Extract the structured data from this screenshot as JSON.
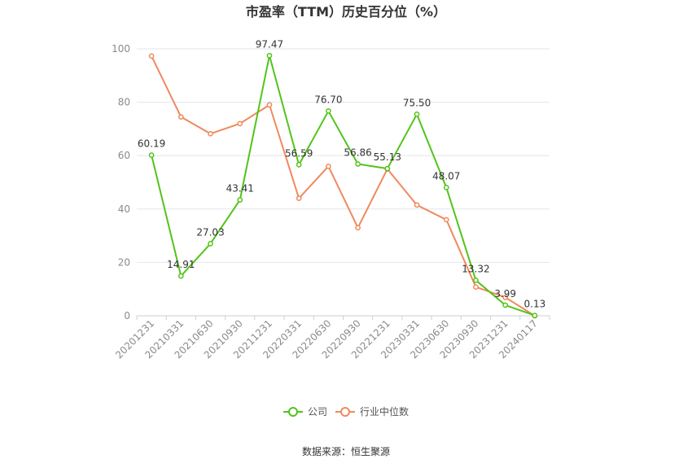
{
  "chart_data": {
    "type": "line",
    "title": "市盈率（TTM）历史百分位（%）",
    "categories": [
      "20201231",
      "20210331",
      "20210630",
      "20210930",
      "20211231",
      "20220331",
      "20220630",
      "20220930",
      "20221231",
      "20230331",
      "20230630",
      "20230930",
      "20231231",
      "20240117"
    ],
    "ylim": [
      0,
      100
    ],
    "yticks": [
      0,
      20,
      40,
      60,
      80,
      100
    ],
    "grid": true,
    "legend_position": "bottom",
    "series": [
      {
        "name": "公司",
        "color": "#52c41a",
        "values": [
          60.19,
          14.91,
          27.03,
          43.41,
          97.47,
          56.59,
          76.7,
          56.86,
          55.13,
          75.5,
          48.07,
          13.32,
          3.99,
          0.13
        ],
        "labels": [
          "60.19",
          "14.91",
          "27.03",
          "43.41",
          "97.47",
          "56.59",
          "76.70",
          "56.86",
          "55.13",
          "75.50",
          "48.07",
          "13.32",
          "3.99",
          "0.13"
        ]
      },
      {
        "name": "行业中位数",
        "color": "#f0895e",
        "values": [
          97.3,
          74.5,
          68.2,
          72.0,
          79.0,
          44.0,
          56.0,
          33.0,
          55.0,
          41.5,
          36.0,
          10.8,
          6.9,
          0.0
        ]
      }
    ]
  },
  "source": "数据来源：恒生聚源"
}
